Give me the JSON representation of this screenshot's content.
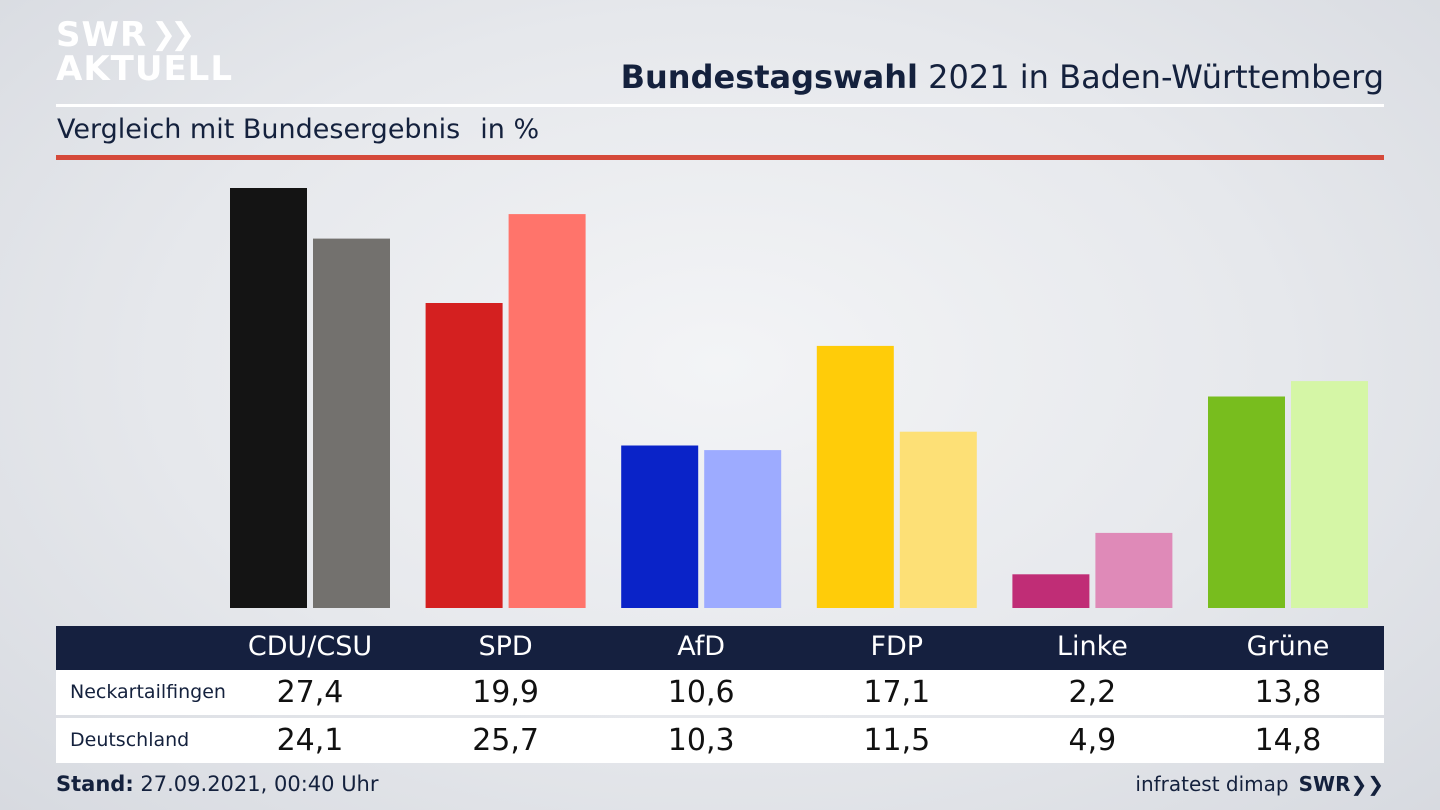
{
  "logo": {
    "line1": "SWR",
    "line1_icon": "double-chevron-right-icon",
    "line2": "AKTUELL"
  },
  "header": {
    "title_bold": "Bundestagswahl",
    "title_rest": "2021 in Baden-Württemberg",
    "subtitle": "Vergleich mit Bundesergebnis",
    "unit": "in %"
  },
  "colors": {
    "accent_rule": "#d5493a",
    "table_header": "#15203f"
  },
  "chart_data": {
    "type": "bar",
    "categories": [
      "CDU/CSU",
      "SPD",
      "AfD",
      "FDP",
      "Linke",
      "Grüne"
    ],
    "series": [
      {
        "name": "Neckartailfingen",
        "values": [
          27.4,
          19.9,
          10.6,
          17.1,
          2.2,
          13.8
        ],
        "colors": [
          "#141414",
          "#d42020",
          "#0a23c8",
          "#ffcc09",
          "#c02d76",
          "#78bd1e"
        ]
      },
      {
        "name": "Deutschland",
        "values": [
          24.1,
          25.7,
          10.3,
          11.5,
          4.9,
          14.8
        ],
        "colors": [
          "#73716e",
          "#ff746b",
          "#9dabff",
          "#fde076",
          "#df8ab8",
          "#d5f6a6"
        ]
      }
    ],
    "ylim": [
      0,
      27.4
    ],
    "grid": false,
    "legend": "table-below"
  },
  "table": {
    "rows": [
      {
        "label": "Neckartailfingen",
        "values": [
          "27,4",
          "19,9",
          "10,6",
          "17,1",
          "2,2",
          "13,8"
        ]
      },
      {
        "label": "Deutschland",
        "values": [
          "24,1",
          "25,7",
          "10,3",
          "11,5",
          "4,9",
          "14,8"
        ]
      }
    ]
  },
  "footer": {
    "stand_label": "Stand:",
    "stand_value": "27.09.2021, 00:40 Uhr",
    "source": "infratest dimap",
    "brand": "SWR",
    "brand_icon": "double-chevron-right-icon"
  }
}
